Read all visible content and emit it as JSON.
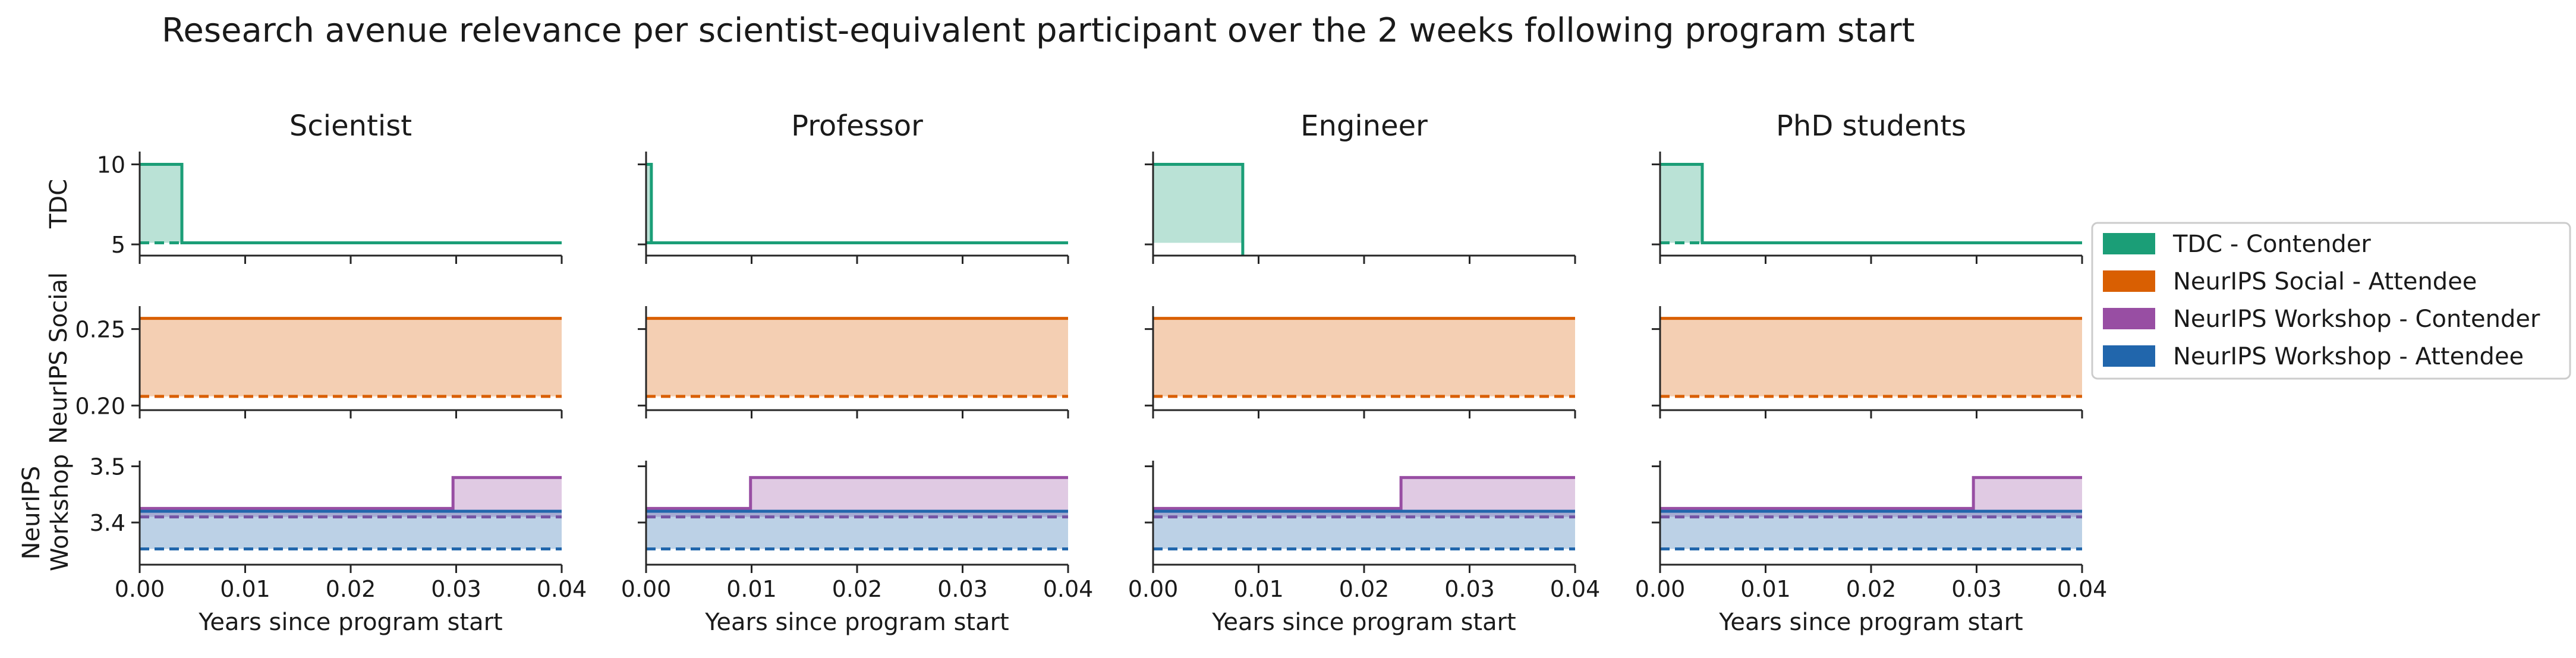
{
  "figure_title": "Research avenue relevance per scientist-equivalent participant over the 2 weeks following program start",
  "column_titles": [
    "Scientist",
    "Professor",
    "Engineer",
    "PhD students"
  ],
  "row_labels": [
    [
      "TDC"
    ],
    [
      "NeurIPS Social"
    ],
    [
      "NeurIPS",
      "Workshop"
    ]
  ],
  "x_label": "Years since program start",
  "legend": [
    {
      "label": "TDC - Contender",
      "color": "#1b9e77"
    },
    {
      "label": "NeurIPS Social - Attendee",
      "color": "#d95f02"
    },
    {
      "label": "NeurIPS Workshop - Contender",
      "color": "#984ea3"
    },
    {
      "label": "NeurIPS Workshop - Attendee",
      "color": "#2166ac"
    }
  ],
  "chart_data": {
    "type": "area",
    "title": "Research avenue relevance per scientist-equivalent participant over the 2 weeks following program start",
    "xlabel": "Years since program start",
    "xlim": [
      0,
      0.04
    ],
    "x_ticks": [
      "0.00",
      "0.01",
      "0.02",
      "0.03",
      "0.04"
    ],
    "x_tick_values": [
      0,
      0.01,
      0.02,
      0.03,
      0.04
    ],
    "columns": [
      "Scientist",
      "Professor",
      "Engineer",
      "PhD students"
    ],
    "rows": [
      {
        "ylabel": "TDC",
        "ylim": [
          4.3,
          10.8
        ],
        "y_ticks": [
          {
            "value": 5,
            "label": "5"
          },
          {
            "value": 10,
            "label": "10"
          }
        ],
        "series": [
          {
            "name": "TDC - Contender",
            "color": "#1b9e77",
            "baseline": 5.1,
            "panels": [
              {
                "points": [
                  [
                    0,
                    10
                  ],
                  [
                    0.004,
                    10
                  ],
                  [
                    0.004,
                    5.1
                  ],
                  [
                    0.04,
                    5.1
                  ]
                ],
                "show_baseline": true
              },
              {
                "points": [
                  [
                    0,
                    10
                  ],
                  [
                    0.0005,
                    10
                  ],
                  [
                    0.0005,
                    5.1
                  ],
                  [
                    0.04,
                    5.1
                  ]
                ],
                "show_baseline": true
              },
              {
                "points": [
                  [
                    0,
                    10
                  ],
                  [
                    0.0085,
                    10
                  ],
                  [
                    0.0085,
                    4.3
                  ]
                ],
                "show_baseline": false
              },
              {
                "points": [
                  [
                    0,
                    10
                  ],
                  [
                    0.004,
                    10
                  ],
                  [
                    0.004,
                    5.1
                  ],
                  [
                    0.04,
                    5.1
                  ]
                ],
                "show_baseline": true
              }
            ]
          }
        ]
      },
      {
        "ylabel": "NeurIPS Social",
        "ylim": [
          0.197,
          0.265
        ],
        "y_ticks": [
          {
            "value": 0.2,
            "label": "0.20"
          },
          {
            "value": 0.25,
            "label": "0.25"
          }
        ],
        "series": [
          {
            "name": "NeurIPS Social - Attendee",
            "color": "#d95f02",
            "baseline": 0.206,
            "panels": [
              {
                "points": [
                  [
                    0,
                    0.257
                  ],
                  [
                    0.04,
                    0.257
                  ]
                ],
                "show_baseline": true
              },
              {
                "points": [
                  [
                    0,
                    0.257
                  ],
                  [
                    0.04,
                    0.257
                  ]
                ],
                "show_baseline": true
              },
              {
                "points": [
                  [
                    0,
                    0.257
                  ],
                  [
                    0.04,
                    0.257
                  ]
                ],
                "show_baseline": true
              },
              {
                "points": [
                  [
                    0,
                    0.257
                  ],
                  [
                    0.04,
                    0.257
                  ]
                ],
                "show_baseline": true
              }
            ]
          }
        ]
      },
      {
        "ylabel": "NeurIPS Workshop",
        "ylim": [
          3.325,
          3.51
        ],
        "y_ticks": [
          {
            "value": 3.4,
            "label": "3.4"
          },
          {
            "value": 3.5,
            "label": "3.5"
          }
        ],
        "series": [
          {
            "name": "NeurIPS Workshop - Contender",
            "color": "#984ea3",
            "baseline": 3.41,
            "panels": [
              {
                "points": [
                  [
                    0,
                    3.425
                  ],
                  [
                    0.0297,
                    3.425
                  ],
                  [
                    0.0297,
                    3.48
                  ],
                  [
                    0.04,
                    3.48
                  ]
                ],
                "show_baseline": true
              },
              {
                "points": [
                  [
                    0,
                    3.425
                  ],
                  [
                    0.0099,
                    3.425
                  ],
                  [
                    0.0099,
                    3.48
                  ],
                  [
                    0.04,
                    3.48
                  ]
                ],
                "show_baseline": true
              },
              {
                "points": [
                  [
                    0,
                    3.425
                  ],
                  [
                    0.0235,
                    3.425
                  ],
                  [
                    0.0235,
                    3.48
                  ],
                  [
                    0.04,
                    3.48
                  ]
                ],
                "show_baseline": true
              },
              {
                "points": [
                  [
                    0,
                    3.425
                  ],
                  [
                    0.0297,
                    3.425
                  ],
                  [
                    0.0297,
                    3.48
                  ],
                  [
                    0.04,
                    3.48
                  ]
                ],
                "show_baseline": true
              }
            ]
          },
          {
            "name": "NeurIPS Workshop - Attendee",
            "color": "#2166ac",
            "baseline": 3.353,
            "panels": [
              {
                "points": [
                  [
                    0,
                    3.42
                  ],
                  [
                    0.04,
                    3.42
                  ]
                ],
                "show_baseline": true
              },
              {
                "points": [
                  [
                    0,
                    3.42
                  ],
                  [
                    0.04,
                    3.42
                  ]
                ],
                "show_baseline": true
              },
              {
                "points": [
                  [
                    0,
                    3.42
                  ],
                  [
                    0.04,
                    3.42
                  ]
                ],
                "show_baseline": true
              },
              {
                "points": [
                  [
                    0,
                    3.42
                  ],
                  [
                    0.04,
                    3.42
                  ]
                ],
                "show_baseline": true
              }
            ]
          }
        ]
      }
    ],
    "grid": false,
    "legend_position": "right"
  }
}
